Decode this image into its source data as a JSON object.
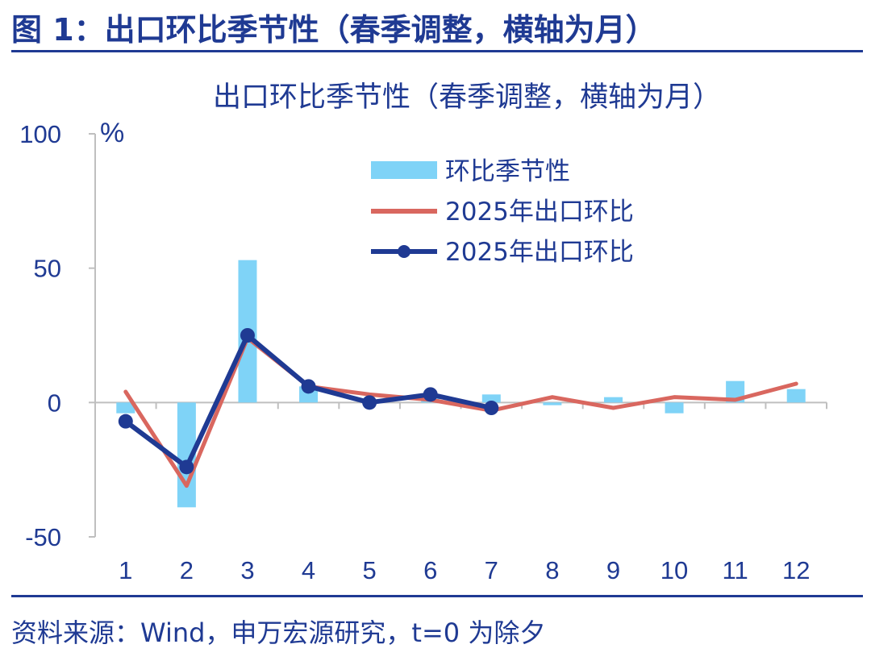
{
  "figure_title": "图 1：出口环比季节性（春季调整，横轴为月）",
  "source_note": "资料来源：Wind，申万宏源研究，t=0 为除夕",
  "colors": {
    "brand": "#1f3a93",
    "bar": "#7fd3f7",
    "line_red": "#d9675f",
    "line_blue": "#1f3a93",
    "axis": "#bfbfbf"
  },
  "chart_data": {
    "type": "bar",
    "title": "出口环比季节性（春季调整，横轴为月）",
    "unit": "%",
    "categories": [
      "1",
      "2",
      "3",
      "4",
      "5",
      "6",
      "7",
      "8",
      "9",
      "10",
      "11",
      "12"
    ],
    "ylim": [
      -50,
      100
    ],
    "yticks": [
      -50,
      0,
      50,
      100
    ],
    "ytick_labels": [
      "-50",
      "0",
      "50",
      "100"
    ],
    "grid": false,
    "legend_position": "top-right",
    "series": [
      {
        "name": "环比季节性",
        "type": "bar",
        "values": [
          -4,
          -39,
          53,
          6,
          1,
          2,
          3,
          -1,
          2,
          -4,
          8,
          5
        ]
      },
      {
        "name": "2025年出口环比",
        "type": "line",
        "values": [
          4,
          -31,
          24,
          6,
          3,
          1,
          -3,
          2,
          -2,
          2,
          1,
          7
        ]
      },
      {
        "name": "2025年出口环比",
        "type": "line-marker",
        "values": [
          -7,
          -24,
          25,
          6,
          0,
          3,
          -2,
          null,
          null,
          null,
          null,
          null
        ]
      }
    ]
  }
}
